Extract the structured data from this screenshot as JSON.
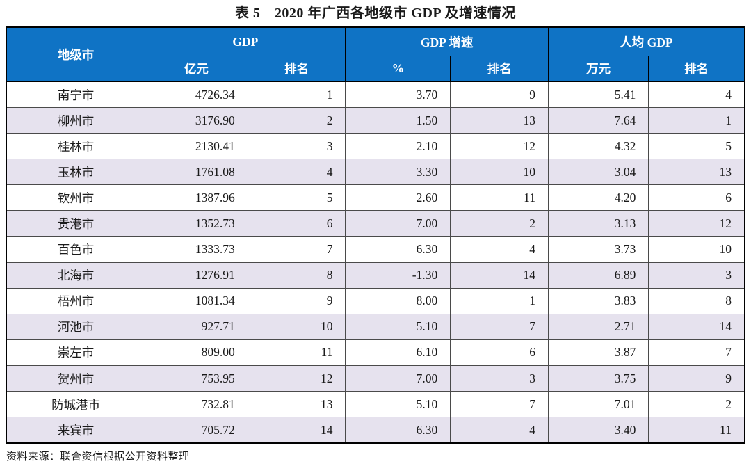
{
  "title": "表 5　2020 年广西各地级市 GDP 及增速情况",
  "colors": {
    "header_bg": "#0f73c5",
    "header_text": "#ffffff",
    "stripe_bg": "#e6e2ee",
    "border_dark": "#000000",
    "border_inner": "#4a4a4a"
  },
  "table": {
    "groups": [
      {
        "label": "地级市"
      },
      {
        "label": "GDP"
      },
      {
        "label": "GDP 增速"
      },
      {
        "label": "人均 GDP"
      }
    ],
    "subheaders": [
      "亿元",
      "排名",
      "%",
      "排名",
      "万元",
      "排名"
    ],
    "rows": [
      [
        "南宁市",
        "4726.34",
        "1",
        "3.70",
        "9",
        "5.41",
        "4"
      ],
      [
        "柳州市",
        "3176.90",
        "2",
        "1.50",
        "13",
        "7.64",
        "1"
      ],
      [
        "桂林市",
        "2130.41",
        "3",
        "2.10",
        "12",
        "4.32",
        "5"
      ],
      [
        "玉林市",
        "1761.08",
        "4",
        "3.30",
        "10",
        "3.04",
        "13"
      ],
      [
        "钦州市",
        "1387.96",
        "5",
        "2.60",
        "11",
        "4.20",
        "6"
      ],
      [
        "贵港市",
        "1352.73",
        "6",
        "7.00",
        "2",
        "3.13",
        "12"
      ],
      [
        "百色市",
        "1333.73",
        "7",
        "6.30",
        "4",
        "3.73",
        "10"
      ],
      [
        "北海市",
        "1276.91",
        "8",
        "-1.30",
        "14",
        "6.89",
        "3"
      ],
      [
        "梧州市",
        "1081.34",
        "9",
        "8.00",
        "1",
        "3.83",
        "8"
      ],
      [
        "河池市",
        "927.71",
        "10",
        "5.10",
        "7",
        "2.71",
        "14"
      ],
      [
        "崇左市",
        "809.00",
        "11",
        "6.10",
        "6",
        "3.87",
        "7"
      ],
      [
        "贺州市",
        "753.95",
        "12",
        "7.00",
        "3",
        "3.75",
        "9"
      ],
      [
        "防城港市",
        "732.81",
        "13",
        "5.10",
        "7",
        "7.01",
        "2"
      ],
      [
        "来宾市",
        "705.72",
        "14",
        "6.30",
        "4",
        "3.40",
        "11"
      ]
    ]
  },
  "source": "资料来源：联合资信根据公开资料整理"
}
